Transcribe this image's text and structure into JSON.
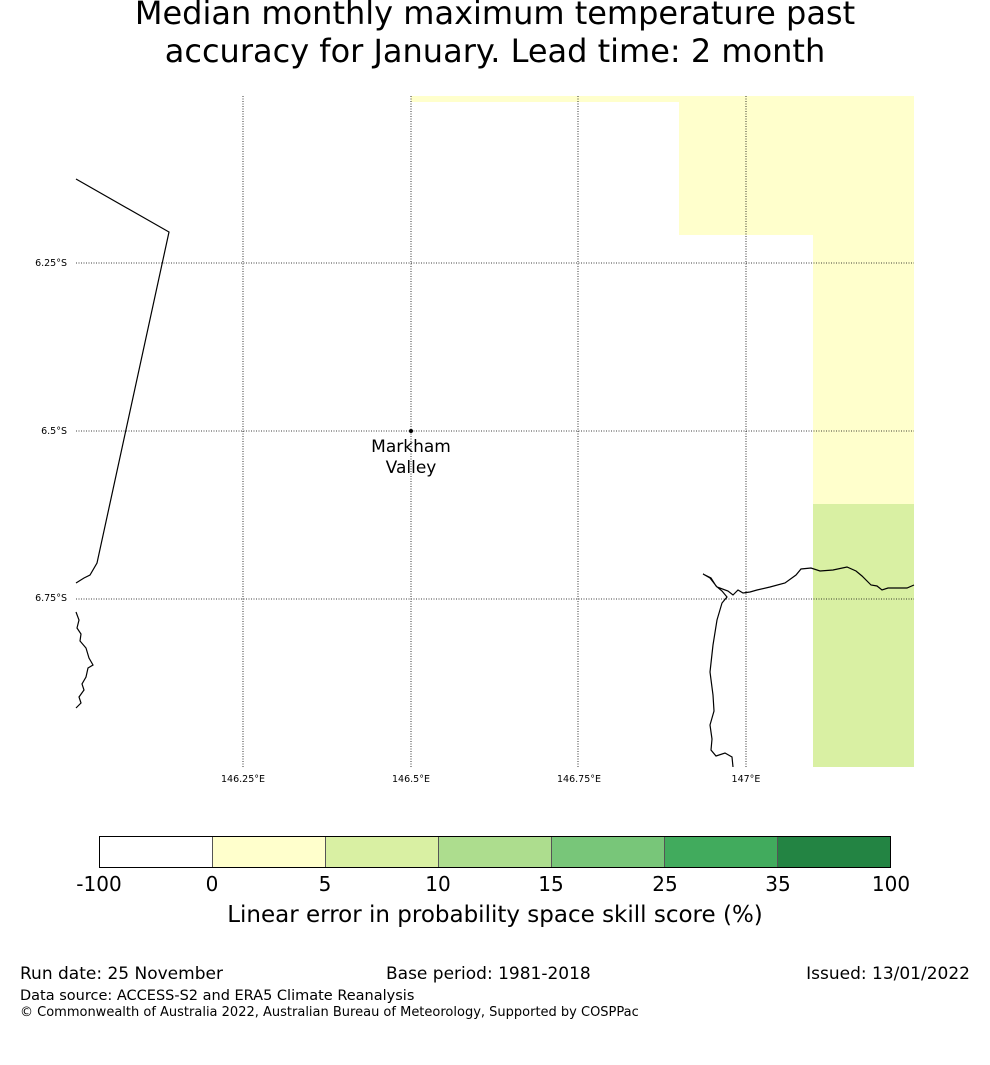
{
  "title_line1": "Median monthly maximum temperature past",
  "title_line2": "accuracy for January. Lead time: 2 month",
  "map": {
    "location_name": "Markham",
    "location_name2": "Valley",
    "lon_labels": [
      "146.25°E",
      "146.5°E",
      "146.75°E",
      "147°E"
    ],
    "lat_labels": [
      "6.25°S",
      "6.5°S",
      "6.75°S"
    ]
  },
  "legend": {
    "ticks": [
      "-100",
      "0",
      "5",
      "10",
      "15",
      "25",
      "35",
      "100"
    ],
    "colors": [
      "#ffffff",
      "#ffffcc",
      "#d9f0a3",
      "#addd8e",
      "#78c679",
      "#41ab5d",
      "#238443"
    ],
    "label": "Linear error in probability space skill score (%)"
  },
  "footer": {
    "run_date": "Run date: 25 November",
    "base_period": "Base period: 1981-2018",
    "issued": "Issued: 13/01/2022",
    "data_source": "Data source: ACCESS-S2 and ERA5 Climate Reanalysis",
    "copyright": "© Commonwealth of Australia 2022, Australian Bureau of Meteorology, Supported by COSPPac"
  }
}
